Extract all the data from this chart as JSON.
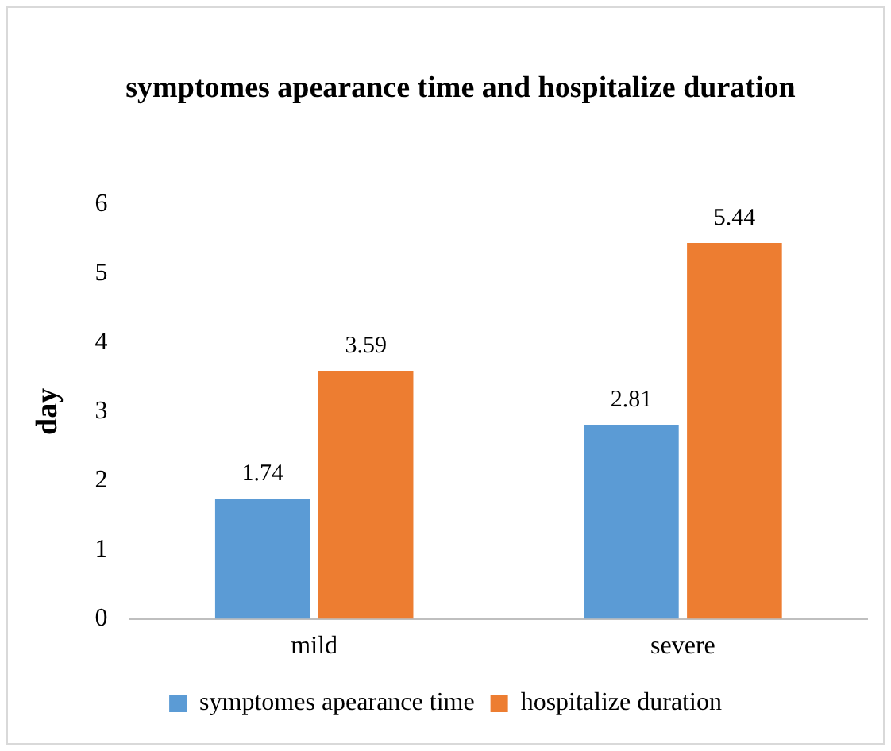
{
  "chart_data": {
    "type": "bar",
    "title": "symptomes apearance time and hospitalize duration",
    "ylabel": "day",
    "categories": [
      "mild",
      "severe"
    ],
    "series": [
      {
        "name": "symptomes apearance time",
        "color": "#5b9bd5",
        "values": [
          1.74,
          2.81
        ]
      },
      {
        "name": "hospitalize duration",
        "color": "#ed7d31",
        "values": [
          3.59,
          5.44
        ]
      }
    ],
    "ylim": [
      0,
      6
    ],
    "yticks": [
      0,
      1,
      2,
      3,
      4,
      5,
      6
    ],
    "grid": false,
    "legend": "bottom",
    "data_labels": true
  }
}
